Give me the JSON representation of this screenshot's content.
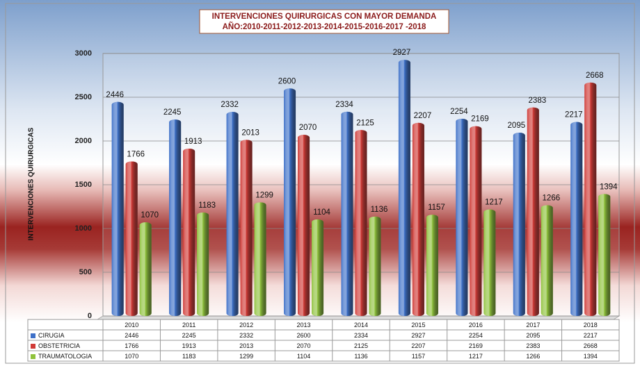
{
  "chart_data": {
    "type": "bar",
    "title": "INTERVENCIONES QUIRURGICAS CON MAYOR DEMANDA",
    "subtitle": "AÑO:2010-2011-2012-2013-2014-2015-2016-2017 -2018",
    "y_label": "INTERVENCIONES QUIRURGICAS",
    "categories": [
      "2010",
      "2011",
      "2012",
      "2013",
      "2014",
      "2015",
      "2016",
      "2017",
      "2018"
    ],
    "series": [
      {
        "name": "CIRUGIA",
        "color": "#3d70c8",
        "values": [
          2446,
          2245,
          2332,
          2600,
          2334,
          2927,
          2254,
          2095,
          2217
        ]
      },
      {
        "name": "OBSTETRICIA",
        "color": "#d03a36",
        "values": [
          1766,
          1913,
          2013,
          2070,
          2125,
          2207,
          2169,
          2383,
          2668
        ]
      },
      {
        "name": "TRAUMATOLOGIA",
        "color": "#8fc23c",
        "values": [
          1070,
          1183,
          1299,
          1104,
          1136,
          1157,
          1217,
          1266,
          1394
        ]
      }
    ],
    "ylim": [
      0,
      3000
    ],
    "yticks": [
      0,
      500,
      1000,
      1500,
      2000,
      2500,
      3000
    ],
    "grid": true
  }
}
